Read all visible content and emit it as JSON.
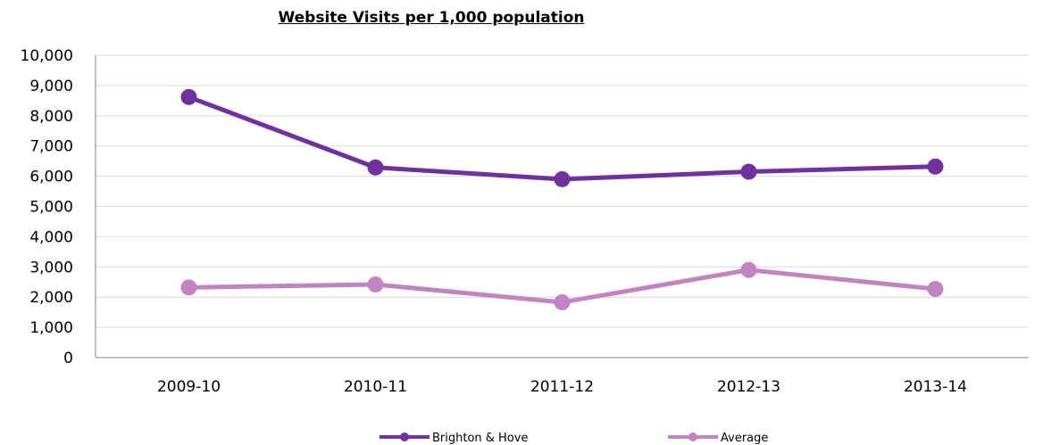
{
  "chart_data": {
    "type": "line",
    "title": "Website Visits per 1,000 population",
    "xlabel": "",
    "ylabel": "",
    "categories": [
      "2009-10",
      "2010-11",
      "2011-12",
      "2012-13",
      "2013-14"
    ],
    "ylim": [
      0,
      10000
    ],
    "ytick_labels": [
      "0",
      "1,000",
      "2,000",
      "3,000",
      "4,000",
      "5,000",
      "6,000",
      "7,000",
      "8,000",
      "9,000",
      "10,000"
    ],
    "grid": "horizontal",
    "legend_position": "bottom",
    "series": [
      {
        "name": "Brighton & Hove",
        "color": "#7030a0",
        "values": [
          8620,
          6290,
          5900,
          6150,
          6320
        ]
      },
      {
        "name": "Average",
        "color": "#c283c3",
        "values": [
          2320,
          2420,
          1830,
          2900,
          2270
        ]
      }
    ]
  }
}
